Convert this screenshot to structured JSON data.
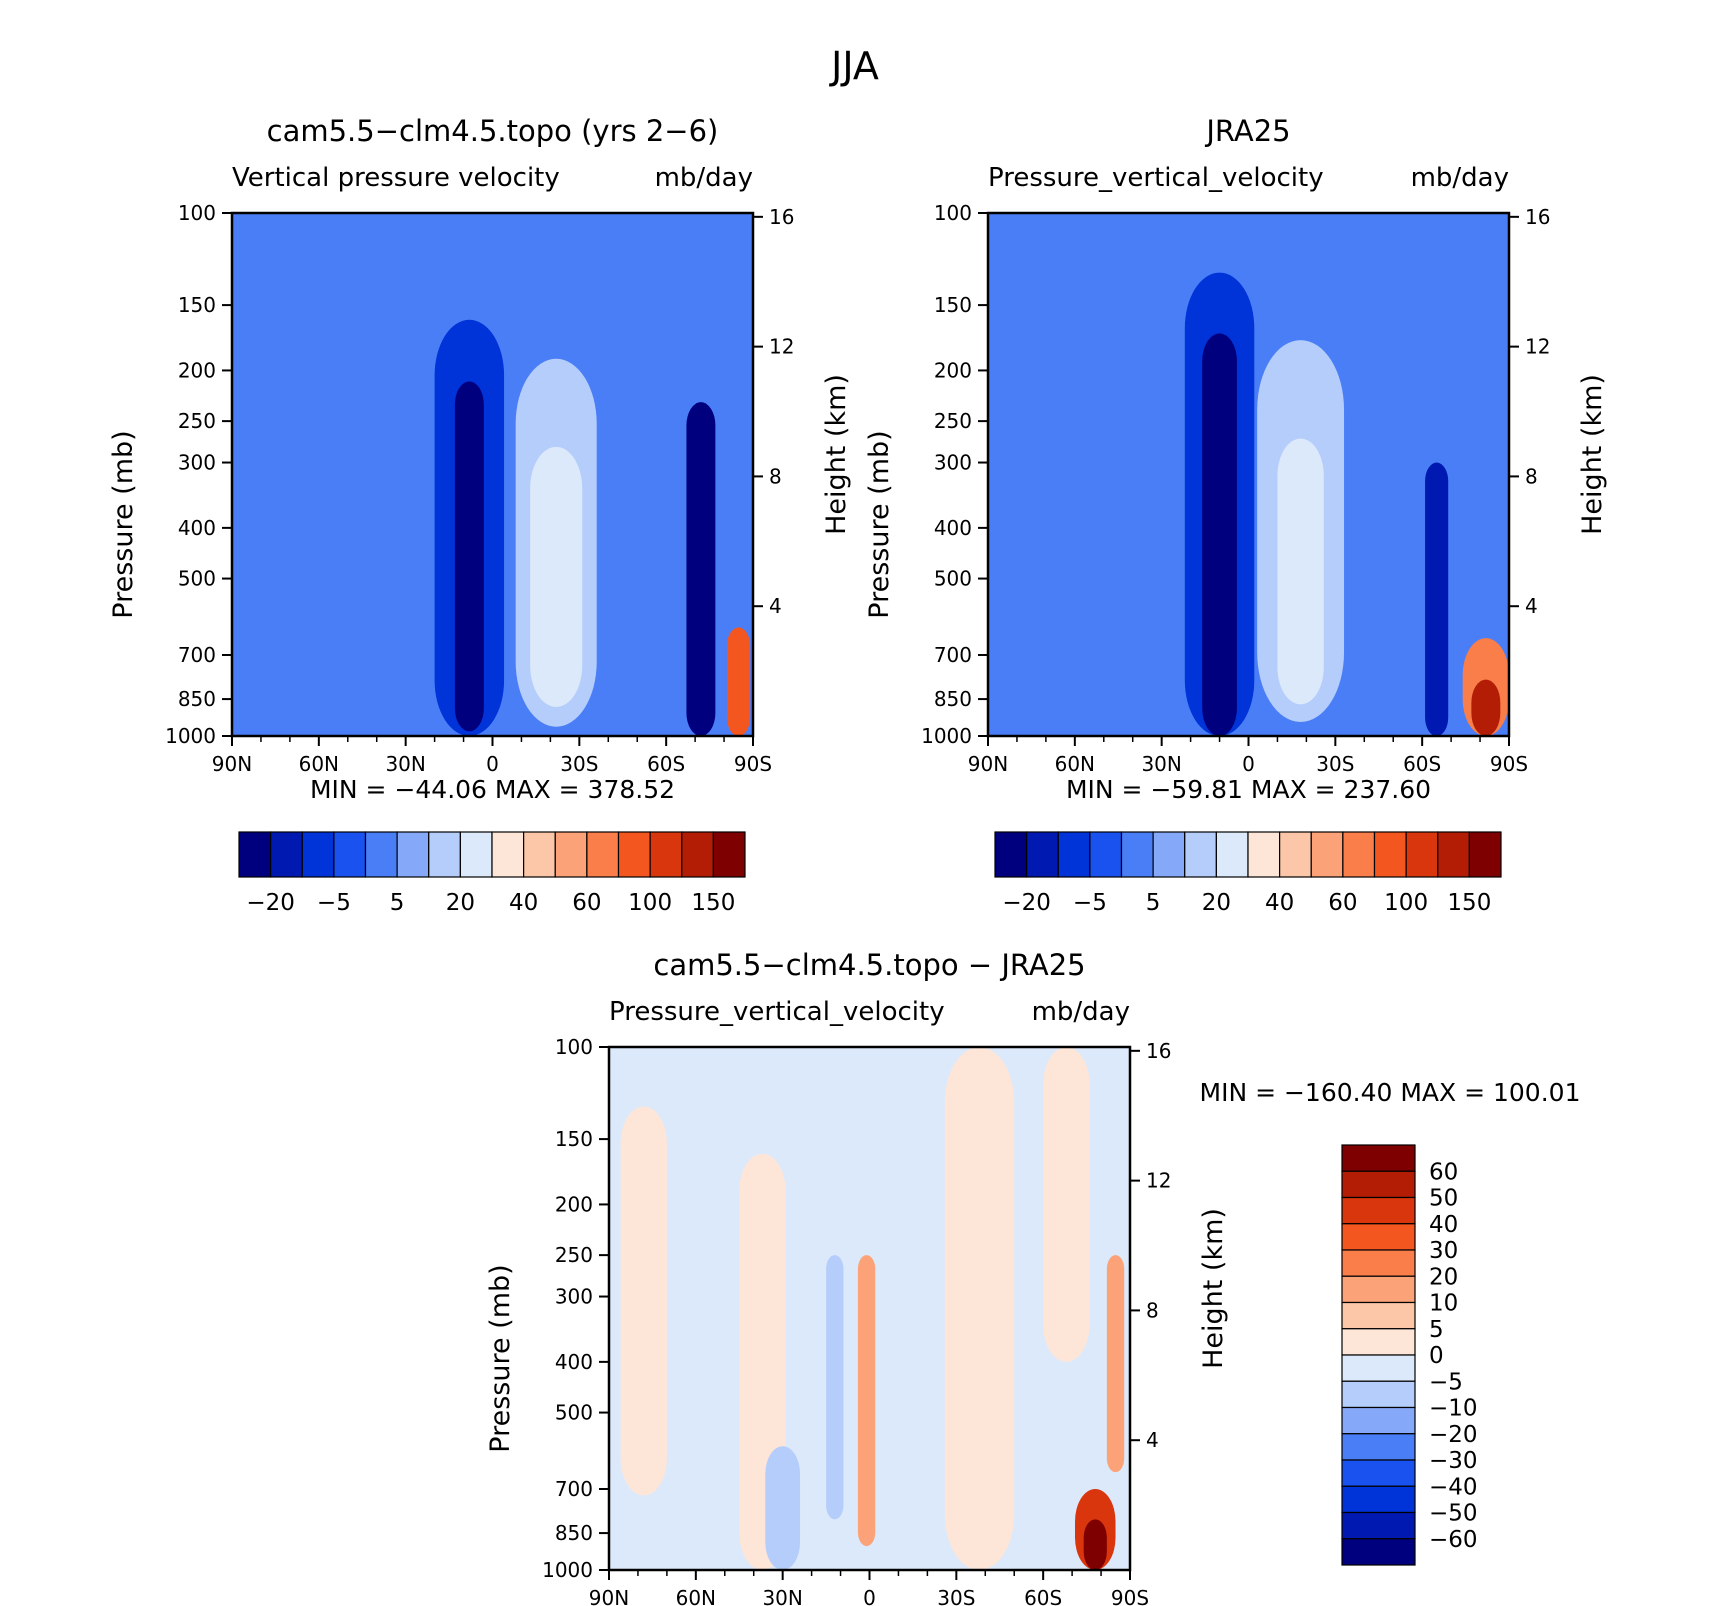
{
  "page_title": "JJA",
  "chart_data": [
    {
      "type": "heatmap",
      "title": "cam5.5−clm4.5.topo (yrs 2−6)",
      "subtitle_left": "Vertical pressure velocity",
      "subtitle_right": "mb/day",
      "xlabel": "",
      "ylabel": "Pressure (mb)",
      "ylabel_right": "Height (km)",
      "x_ticks": [
        "90N",
        "60N",
        "30N",
        "0",
        "30S",
        "60S",
        "90S"
      ],
      "x_values": [
        90,
        60,
        30,
        0,
        -30,
        -60,
        -90
      ],
      "xlim": [
        90,
        -90
      ],
      "y_ticks": [
        "100",
        "150",
        "200",
        "250",
        "300",
        "400",
        "500",
        "700",
        "850",
        "1000"
      ],
      "y_values": [
        100,
        150,
        200,
        250,
        300,
        400,
        500,
        700,
        850,
        1000
      ],
      "ylim": [
        1000,
        100
      ],
      "y_scale": "log",
      "y2_ticks": [
        "16",
        "12",
        "8",
        "4"
      ],
      "y2_values": [
        16,
        12,
        8,
        4
      ],
      "min_max_text": "MIN = −44.06   MAX = 378.52",
      "min": -44.06,
      "max": 378.52,
      "features": [
        {
          "lat": -72,
          "p_top": 230,
          "p_bottom": 1000,
          "half_width": 5,
          "level": 0
        },
        {
          "lat": 8,
          "p_top": 160,
          "p_bottom": 1000,
          "half_width": 12,
          "level": 2
        },
        {
          "lat": 8,
          "p_top": 210,
          "p_bottom": 980,
          "half_width": 5,
          "level": 0
        },
        {
          "lat": -22,
          "p_top": 190,
          "p_bottom": 960,
          "half_width": 14,
          "level": 6
        },
        {
          "lat": -22,
          "p_top": 280,
          "p_bottom": 880,
          "half_width": 9,
          "level": 7
        },
        {
          "lat": -85,
          "p_top": 620,
          "p_bottom": 1000,
          "half_width": 4,
          "level": 12
        }
      ],
      "colorbar": {
        "labels": [
          "−20",
          "−5",
          "5",
          "20",
          "40",
          "60",
          "100",
          "150"
        ],
        "colors": [
          "#00007f",
          "#0019b0",
          "#0033d8",
          "#1a52f0",
          "#4a7ef7",
          "#85a8f8",
          "#b5cdfa",
          "#dce9fb",
          "#fde6d8",
          "#fcc6a8",
          "#fba279",
          "#f97e4a",
          "#f4561f",
          "#d9360e",
          "#b31d06",
          "#7f0000"
        ],
        "orientation": "horizontal"
      }
    },
    {
      "type": "heatmap",
      "title": "JRA25",
      "subtitle_left": "Pressure_vertical_velocity",
      "subtitle_right": "mb/day",
      "xlabel": "",
      "ylabel": "Pressure (mb)",
      "ylabel_right": "Height (km)",
      "x_ticks": [
        "90N",
        "60N",
        "30N",
        "0",
        "30S",
        "60S",
        "90S"
      ],
      "x_values": [
        90,
        60,
        30,
        0,
        -30,
        -60,
        -90
      ],
      "xlim": [
        90,
        -90
      ],
      "y_ticks": [
        "100",
        "150",
        "200",
        "250",
        "300",
        "400",
        "500",
        "700",
        "850",
        "1000"
      ],
      "y_values": [
        100,
        150,
        200,
        250,
        300,
        400,
        500,
        700,
        850,
        1000
      ],
      "ylim": [
        1000,
        100
      ],
      "y_scale": "log",
      "y2_ticks": [
        "16",
        "12",
        "8",
        "4"
      ],
      "y2_values": [
        16,
        12,
        8,
        4
      ],
      "min_max_text": "MIN = −59.81   MAX = 237.60",
      "min": -59.81,
      "max": 237.6,
      "features": [
        {
          "lat": 10,
          "p_top": 130,
          "p_bottom": 1000,
          "half_width": 12,
          "level": 2
        },
        {
          "lat": 10,
          "p_top": 170,
          "p_bottom": 1000,
          "half_width": 6,
          "level": 0
        },
        {
          "lat": -18,
          "p_top": 175,
          "p_bottom": 940,
          "half_width": 15,
          "level": 6
        },
        {
          "lat": -18,
          "p_top": 270,
          "p_bottom": 870,
          "half_width": 8,
          "level": 7
        },
        {
          "lat": -65,
          "p_top": 300,
          "p_bottom": 1000,
          "half_width": 4,
          "level": 1
        },
        {
          "lat": -82,
          "p_top": 650,
          "p_bottom": 1000,
          "half_width": 8,
          "level": 11
        },
        {
          "lat": -82,
          "p_top": 780,
          "p_bottom": 1000,
          "half_width": 5,
          "level": 14
        }
      ],
      "colorbar": {
        "labels": [
          "−20",
          "−5",
          "5",
          "20",
          "40",
          "60",
          "100",
          "150"
        ],
        "colors": [
          "#00007f",
          "#0019b0",
          "#0033d8",
          "#1a52f0",
          "#4a7ef7",
          "#85a8f8",
          "#b5cdfa",
          "#dce9fb",
          "#fde6d8",
          "#fcc6a8",
          "#fba279",
          "#f97e4a",
          "#f4561f",
          "#d9360e",
          "#b31d06",
          "#7f0000"
        ],
        "orientation": "horizontal"
      }
    },
    {
      "type": "heatmap",
      "title": "cam5.5−clm4.5.topo − JRA25",
      "subtitle_left": "Pressure_vertical_velocity",
      "subtitle_right": "mb/day",
      "xlabel": "",
      "ylabel": "Pressure (mb)",
      "ylabel_right": "Height (km)",
      "x_ticks": [
        "90N",
        "60N",
        "30N",
        "0",
        "30S",
        "60S",
        "90S"
      ],
      "x_values": [
        90,
        60,
        30,
        0,
        -30,
        -60,
        -90
      ],
      "xlim": [
        90,
        -90
      ],
      "y_ticks": [
        "100",
        "150",
        "200",
        "250",
        "300",
        "400",
        "500",
        "700",
        "850",
        "1000"
      ],
      "y_values": [
        100,
        150,
        200,
        250,
        300,
        400,
        500,
        700,
        850,
        1000
      ],
      "ylim": [
        1000,
        100
      ],
      "y_scale": "log",
      "y2_ticks": [
        "16",
        "12",
        "8",
        "4"
      ],
      "y2_values": [
        16,
        12,
        8,
        4
      ],
      "min_max_text": "MIN = −160.40   MAX = 100.01",
      "min": -160.4,
      "max": 100.01,
      "features": [
        {
          "lat": 78,
          "p_top": 130,
          "p_bottom": 720,
          "half_width": 8,
          "level": 7
        },
        {
          "lat": 37,
          "p_top": 160,
          "p_bottom": 1000,
          "half_width": 8,
          "level": 7
        },
        {
          "lat": 30,
          "p_top": 580,
          "p_bottom": 1000,
          "half_width": 6,
          "level": 9
        },
        {
          "lat": 12,
          "p_top": 180,
          "p_bottom": 900,
          "half_width": 4,
          "level": 8
        },
        {
          "lat": 12,
          "p_top": 250,
          "p_bottom": 800,
          "half_width": 3,
          "level": 9
        },
        {
          "lat": 1,
          "p_top": 250,
          "p_bottom": 900,
          "half_width": 3,
          "level": 5
        },
        {
          "lat": -38,
          "p_top": 100,
          "p_bottom": 1000,
          "half_width": 12,
          "level": 7
        },
        {
          "lat": -68,
          "p_top": 100,
          "p_bottom": 400,
          "half_width": 8,
          "level": 7
        },
        {
          "lat": -85,
          "p_top": 250,
          "p_bottom": 650,
          "half_width": 3,
          "level": 5
        },
        {
          "lat": -78,
          "p_top": 700,
          "p_bottom": 1000,
          "half_width": 7,
          "level": 2
        },
        {
          "lat": -78,
          "p_top": 800,
          "p_bottom": 1000,
          "half_width": 4,
          "level": 0
        }
      ],
      "colorbar": {
        "labels": [
          "60",
          "50",
          "40",
          "30",
          "20",
          "10",
          "5",
          "0",
          "−5",
          "−10",
          "−20",
          "−30",
          "−40",
          "−50",
          "−60"
        ],
        "colors": [
          "#7f0000",
          "#b31d06",
          "#d9360e",
          "#f4561f",
          "#f97e4a",
          "#fba279",
          "#fcc6a8",
          "#fde6d8",
          "#dce9fb",
          "#b5cdfa",
          "#85a8f8",
          "#4a7ef7",
          "#1a52f0",
          "#0033d8",
          "#0019b0",
          "#00007f"
        ],
        "orientation": "vertical"
      }
    }
  ]
}
